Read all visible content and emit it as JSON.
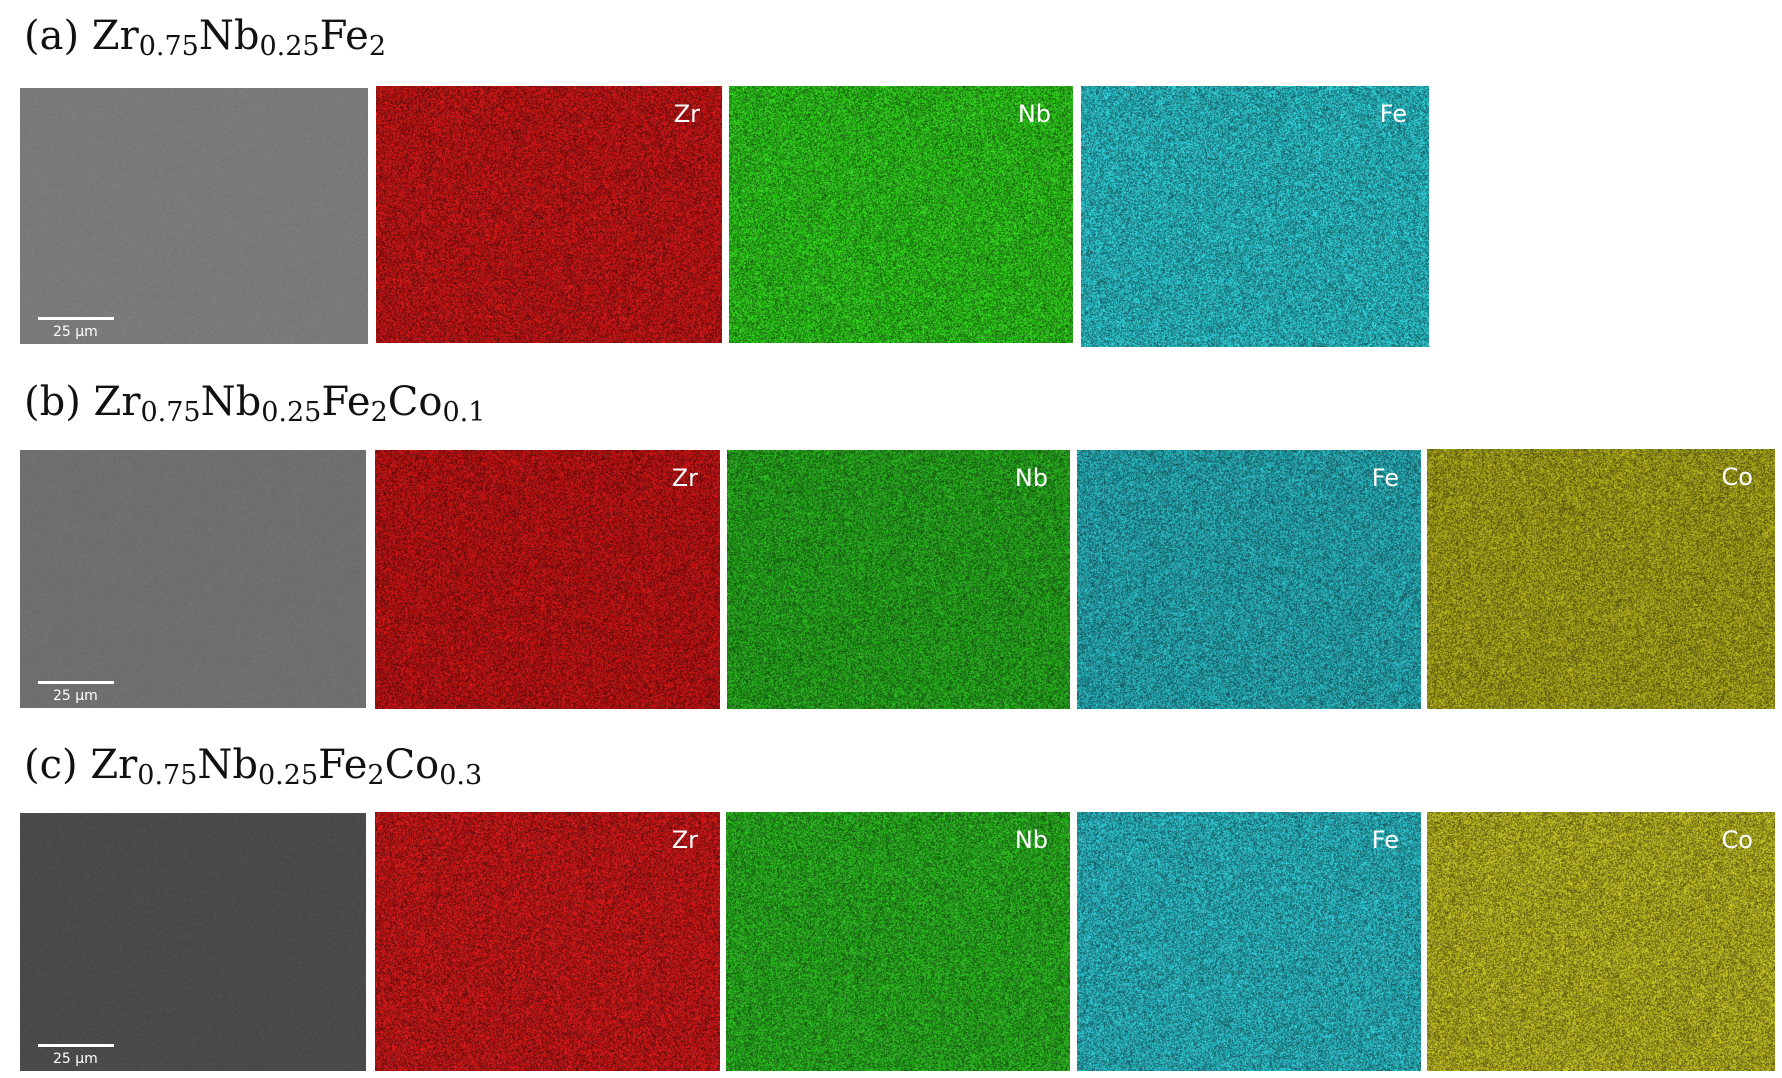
{
  "rows": [
    {
      "label": "(a)",
      "formula": [
        {
          "text": "Zr",
          "sub": "0.75"
        },
        {
          "text": "Nb",
          "sub": "0.25"
        },
        {
          "text": "Fe",
          "sub": "2"
        }
      ],
      "scale_bar": "25 μm",
      "maps": [
        {
          "element": "Zr",
          "color": "#c41616"
        },
        {
          "element": "Nb",
          "color": "#2ec61c"
        },
        {
          "element": "Fe",
          "color": "#2cc0c8"
        }
      ]
    },
    {
      "label": "(b)",
      "formula": [
        {
          "text": "Zr",
          "sub": "0.75"
        },
        {
          "text": "Nb",
          "sub": "0.25"
        },
        {
          "text": "Fe",
          "sub": "2"
        },
        {
          "text": "Co",
          "sub": "0.1"
        }
      ],
      "scale_bar": "25 μm",
      "maps": [
        {
          "element": "Zr",
          "color": "#bf1414"
        },
        {
          "element": "Nb",
          "color": "#27a81e"
        },
        {
          "element": "Fe",
          "color": "#28adb6"
        },
        {
          "element": "Co",
          "color": "#a6a41a"
        }
      ]
    },
    {
      "label": "(c)",
      "formula": [
        {
          "text": "Zr",
          "sub": "0.75"
        },
        {
          "text": "Nb",
          "sub": "0.25"
        },
        {
          "text": "Fe",
          "sub": "2"
        },
        {
          "text": "Co",
          "sub": "0.3"
        }
      ],
      "scale_bar": "25 μm",
      "maps": [
        {
          "element": "Zr",
          "color": "#c81818"
        },
        {
          "element": "Nb",
          "color": "#2ab020"
        },
        {
          "element": "Fe",
          "color": "#2cb8c2"
        },
        {
          "element": "Co",
          "color": "#b6b422"
        }
      ]
    }
  ],
  "colors": {
    "sem_a": "#7a7a7a",
    "sem_b": "#6f6f6f",
    "sem_c": "#4a4a4a",
    "background": "#ffffff"
  }
}
